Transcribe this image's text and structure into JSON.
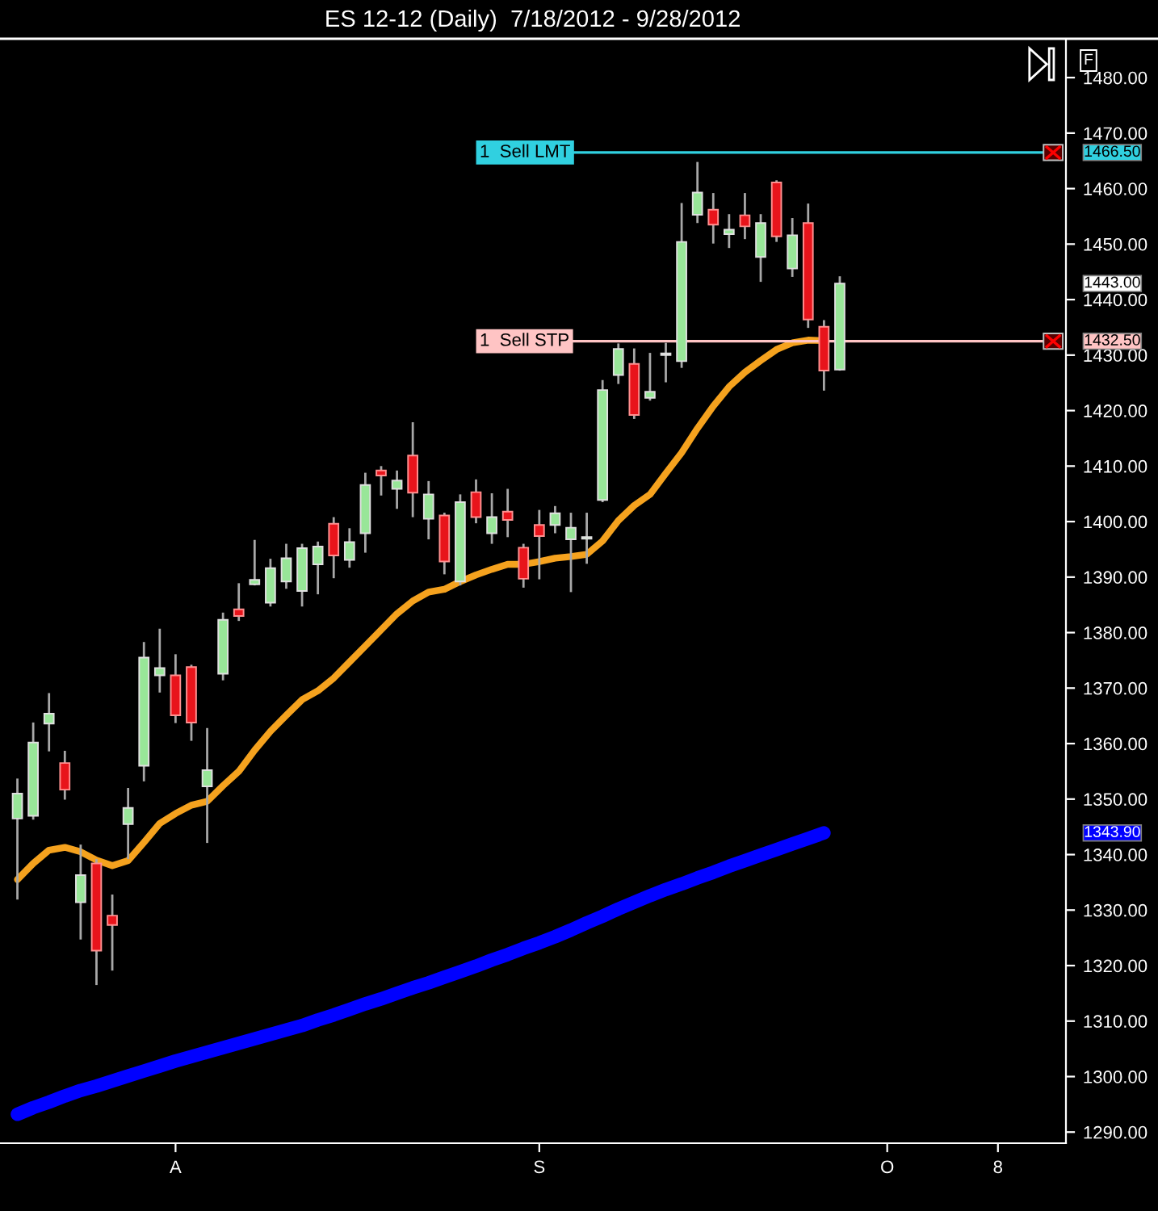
{
  "chart_data": {
    "type": "candlestick",
    "title": "ES 12-12 (Daily)  7/18/2012 - 9/28/2012",
    "categories": [
      null,
      null,
      null,
      null,
      null,
      null,
      null,
      null,
      null,
      null,
      "A",
      null,
      null,
      null,
      null,
      null,
      null,
      null,
      null,
      null,
      null,
      null,
      null,
      null,
      null,
      null,
      null,
      null,
      null,
      null,
      null,
      null,
      null,
      "S",
      null,
      null,
      null,
      null,
      null,
      null,
      null,
      null,
      null,
      null,
      null,
      null,
      null,
      null,
      null,
      null,
      null,
      null,
      null,
      null,
      null,
      "O",
      null,
      null,
      null,
      null,
      null,
      null,
      "8",
      null,
      null,
      null,
      null
    ],
    "ohlc": [
      [
        1346.5,
        1353.5,
        1332.1,
        1351.0
      ],
      [
        1347.0,
        1363.6,
        1346.5,
        1360.2
      ],
      [
        1363.6,
        1368.9,
        1358.8,
        1365.4
      ],
      [
        1356.5,
        1358.5,
        1350.1,
        1351.7
      ],
      [
        1331.4,
        1341.6,
        1324.9,
        1336.3
      ],
      [
        1338.4,
        1339.0,
        1316.7,
        1322.7
      ],
      [
        1329.0,
        1332.6,
        1319.3,
        1327.3
      ],
      [
        1345.5,
        1351.8,
        1339.4,
        1348.4
      ],
      [
        1356.0,
        1378.1,
        1353.4,
        1375.5
      ],
      [
        1372.3,
        1380.5,
        1369.4,
        1373.6
      ],
      [
        1372.3,
        1375.9,
        1363.9,
        1365.1
      ],
      [
        1373.8,
        1374.0,
        1360.7,
        1363.8
      ],
      [
        1352.3,
        1362.6,
        1342.3,
        1355.2
      ],
      [
        1372.6,
        1383.4,
        1371.6,
        1382.3
      ],
      [
        1384.2,
        1388.7,
        1382.3,
        1383.0
      ],
      [
        1388.7,
        1396.5,
        1388.7,
        1389.5
      ],
      [
        1385.4,
        1393.1,
        1384.9,
        1391.6
      ],
      [
        1389.2,
        1395.8,
        1388.1,
        1393.4
      ],
      [
        1387.5,
        1395.8,
        1384.9,
        1395.2
      ],
      [
        1392.3,
        1396.2,
        1387.1,
        1395.5
      ],
      [
        1399.6,
        1400.6,
        1390.0,
        1393.9
      ],
      [
        1393.1,
        1398.6,
        1391.9,
        1396.3
      ],
      [
        1397.9,
        1408.6,
        1394.6,
        1406.6
      ],
      [
        1409.2,
        1409.8,
        1404.9,
        1408.3
      ],
      [
        1405.9,
        1409.0,
        1402.5,
        1407.4
      ],
      [
        1411.9,
        1417.7,
        1401.0,
        1405.2
      ],
      [
        1400.5,
        1407.1,
        1397.0,
        1404.9
      ],
      [
        1401.1,
        1401.4,
        1390.7,
        1392.8
      ],
      [
        1389.2,
        1404.7,
        1388.7,
        1403.5
      ],
      [
        1405.3,
        1407.4,
        1399.9,
        1400.8
      ],
      [
        1397.9,
        1404.9,
        1396.2,
        1400.8
      ],
      [
        1401.8,
        1405.7,
        1397.4,
        1400.3
      ],
      [
        1395.3,
        1395.8,
        1388.3,
        1389.7
      ],
      [
        1399.4,
        1401.9,
        1389.8,
        1397.4
      ],
      [
        1399.4,
        1402.6,
        1398.1,
        1401.5
      ],
      [
        1396.8,
        1401.4,
        1387.5,
        1398.9
      ],
      [
        1396.9,
        1401.4,
        1392.6,
        1397.2
      ],
      [
        1403.9,
        1425.3,
        1403.7,
        1423.7
      ],
      [
        1426.4,
        1431.9,
        1425.0,
        1431.1
      ],
      [
        1428.4,
        1431.0,
        1418.7,
        1419.2
      ],
      [
        1422.3,
        1430.2,
        1422.0,
        1423.4
      ],
      [
        1430.0,
        1432.0,
        1425.3,
        1430.2
      ],
      [
        1428.9,
        1457.2,
        1427.9,
        1450.4
      ],
      [
        1455.3,
        1464.6,
        1454.0,
        1459.3
      ],
      [
        1456.2,
        1459.0,
        1450.3,
        1453.5
      ],
      [
        1451.8,
        1455.2,
        1449.5,
        1452.6
      ],
      [
        1455.2,
        1459.0,
        1451.1,
        1453.2
      ],
      [
        1447.7,
        1455.2,
        1443.4,
        1453.8
      ],
      [
        1461.1,
        1461.3,
        1450.6,
        1451.4
      ],
      [
        1445.6,
        1454.5,
        1444.3,
        1451.6
      ],
      [
        1453.8,
        1457.1,
        1435.1,
        1436.4
      ],
      [
        1435.1,
        1436.1,
        1423.8,
        1427.2
      ],
      [
        1427.4,
        1444.0,
        1427.4,
        1442.9
      ],
      null,
      null,
      null,
      null,
      null,
      null,
      null,
      null,
      null,
      null,
      null,
      null,
      null,
      null
    ],
    "series": [
      {
        "type": "line",
        "color": "#f5a21e",
        "values": [
          1335.5,
          1338.4,
          1340.8,
          1341.3,
          1340.5,
          1339.0,
          1338.0,
          1338.9,
          1342.2,
          1345.6,
          1347.4,
          1348.9,
          1349.6,
          1352.4,
          1355.0,
          1358.8,
          1362.2,
          1365.1,
          1367.9,
          1369.5,
          1371.8,
          1374.7,
          1377.6,
          1380.5,
          1383.4,
          1385.7,
          1387.3,
          1387.8,
          1389.2,
          1390.4,
          1391.4,
          1392.3,
          1392.3,
          1392.8,
          1393.4,
          1393.7,
          1394.1,
          1396.5,
          1400.2,
          1402.9,
          1404.9,
          1408.7,
          1412.4,
          1416.8,
          1420.8,
          1424.3,
          1426.9,
          1429.0,
          1431.0,
          1432.2,
          1432.7,
          1432.6,
          null,
          null,
          null,
          null,
          null,
          null,
          null,
          null,
          null,
          null,
          null,
          null,
          null,
          null,
          null
        ]
      },
      {
        "type": "line",
        "color": "#0000ff",
        "values": [
          1293.2,
          1294.4,
          1295.4,
          1296.5,
          1297.5,
          1298.3,
          1299.2,
          1300.1,
          1301.0,
          1301.9,
          1302.8,
          1303.6,
          1304.4,
          1305.2,
          1306.0,
          1306.8,
          1307.6,
          1308.4,
          1309.2,
          1310.2,
          1311.1,
          1312.1,
          1313.1,
          1314.0,
          1315.0,
          1316.0,
          1316.9,
          1317.9,
          1318.9,
          1319.9,
          1321.0,
          1322.0,
          1323.1,
          1324.1,
          1325.2,
          1326.4,
          1327.7,
          1328.9,
          1330.2,
          1331.4,
          1332.6,
          1333.7,
          1334.7,
          1335.8,
          1336.8,
          1337.9,
          1338.9,
          1339.9,
          1340.9,
          1341.9,
          1342.9,
          1343.9,
          null,
          null,
          null,
          null,
          null,
          null,
          null,
          null,
          null,
          null,
          null,
          null,
          null,
          null,
          null
        ]
      }
    ],
    "ylim": [
      1288,
      1487
    ],
    "yticks": [
      {
        "value": 1290,
        "label": "1290.00"
      },
      {
        "value": 1300,
        "label": "1300.00"
      },
      {
        "value": 1310,
        "label": "1310.00"
      },
      {
        "value": 1320,
        "label": "1320.00"
      },
      {
        "value": 1330,
        "label": "1330.00"
      },
      {
        "value": 1340,
        "label": "1340.00"
      },
      {
        "value": 1350,
        "label": "1350.00"
      },
      {
        "value": 1360,
        "label": "1360.00"
      },
      {
        "value": 1370,
        "label": "1370.00"
      },
      {
        "value": 1380,
        "label": "1380.00"
      },
      {
        "value": 1390,
        "label": "1390.00"
      },
      {
        "value": 1400,
        "label": "1400.00"
      },
      {
        "value": 1410,
        "label": "1410.00"
      },
      {
        "value": 1420,
        "label": "1420.00"
      },
      {
        "value": 1430,
        "label": "1430.00"
      },
      {
        "value": 1440,
        "label": "1440.00"
      },
      {
        "value": 1450,
        "label": "1450.00"
      },
      {
        "value": 1460,
        "label": "1460.00"
      },
      {
        "value": 1470,
        "label": "1470.00"
      },
      {
        "value": 1480,
        "label": "1480.00"
      }
    ],
    "ref_lines": [
      {
        "axis": "y",
        "value": 1466.5,
        "label": "1  Sell LMT",
        "color": "#30d0e0"
      },
      {
        "axis": "y",
        "value": 1432.5,
        "label": "1  Sell STP",
        "color": "#ffc4c4"
      }
    ],
    "annotations": [
      "1466.50",
      "1443.00",
      "1432.50",
      "1343.90",
      "F"
    ],
    "grid": false,
    "legend": false
  }
}
